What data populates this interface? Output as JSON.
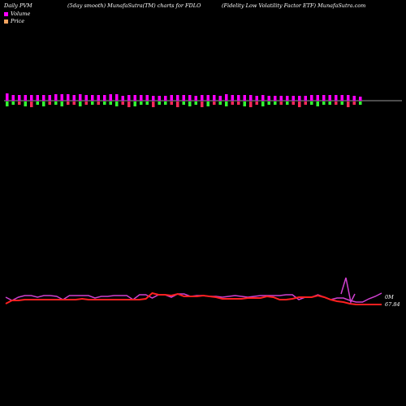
{
  "header": {
    "left": "Daily PVM",
    "middle": "(5day smooth) MunafaSutra(TM) charts for FDLO",
    "right": "(Fidelity Low Volatility Factor ETF) MunafaSutra.com"
  },
  "legend": [
    {
      "label": "Volume",
      "color": "#ff00ff"
    },
    {
      "label": "Price",
      "color": "#f4a460"
    }
  ],
  "chart_data": {
    "type": "line",
    "volume_bars": {
      "values": [
        9,
        7,
        7,
        7,
        7,
        7,
        7,
        7,
        8,
        8,
        8,
        7,
        8,
        7,
        7,
        7,
        7,
        8,
        8,
        6,
        7,
        7,
        7,
        7,
        6,
        6,
        6,
        7,
        7,
        7,
        7,
        6,
        7,
        7,
        7,
        6,
        8,
        7,
        7,
        7,
        7,
        6,
        7,
        6,
        6,
        6,
        6,
        6,
        6,
        6,
        7,
        7,
        7,
        7,
        7,
        7,
        7,
        6,
        5
      ],
      "directions": [
        "dn",
        "dn",
        "up",
        "dn",
        "up",
        "dn",
        "dn",
        "up",
        "dn",
        "dn",
        "up",
        "up",
        "dn",
        "up",
        "dn",
        "up",
        "dn",
        "dn",
        "dn",
        "up",
        "up",
        "dn",
        "dn",
        "dn",
        "up",
        "dn",
        "dn",
        "up",
        "up",
        "dn",
        "dn",
        "dn",
        "up",
        "dn",
        "up",
        "dn",
        "dn",
        "up",
        "up",
        "dn",
        "up",
        "up",
        "dn",
        "dn",
        "dn",
        "up",
        "dn",
        "up",
        "up",
        "up",
        "dn",
        "dn",
        "dn",
        "dn",
        "up",
        "dn",
        "up",
        "up",
        "dn"
      ],
      "colors": {
        "up": "#ff2a5a",
        "down": "#33ff33",
        "top": "#ff00ff"
      }
    },
    "series": [
      {
        "name": "Volume",
        "color": "#d040d0",
        "values": [
          366,
          370,
          366,
          364,
          364,
          366,
          364,
          364,
          365,
          369,
          364,
          364,
          364,
          364,
          367,
          365,
          365,
          364,
          364,
          364,
          369,
          363,
          363,
          367,
          363,
          363,
          366,
          362,
          362,
          365,
          364,
          364,
          365,
          365,
          366,
          365,
          364,
          365,
          366,
          365,
          364,
          364,
          364,
          364,
          363,
          363,
          369,
          366,
          366,
          363,
          366,
          369,
          367,
          367,
          370,
          372,
          372,
          368,
          365,
          361
        ]
      },
      {
        "name": "Price",
        "color": "#ff2020",
        "values": [
          374,
          370,
          370,
          369,
          369,
          369,
          369,
          369,
          369,
          369,
          369,
          369,
          368,
          369,
          369,
          369,
          369,
          369,
          369,
          369,
          369,
          369,
          368,
          361,
          363,
          363,
          364,
          362,
          365,
          365,
          365,
          364,
          365,
          366,
          368,
          368,
          368,
          368,
          367,
          367,
          367,
          365,
          366,
          369,
          369,
          368,
          366,
          366,
          366,
          364,
          366,
          369,
          371,
          372,
          374,
          375,
          375,
          375,
          375,
          375
        ]
      }
    ],
    "value_labels": [
      {
        "text": "0M",
        "series": "Volume"
      },
      {
        "text": "67.84",
        "series": "Price"
      }
    ],
    "grid": false,
    "legend_position": "top-left"
  }
}
